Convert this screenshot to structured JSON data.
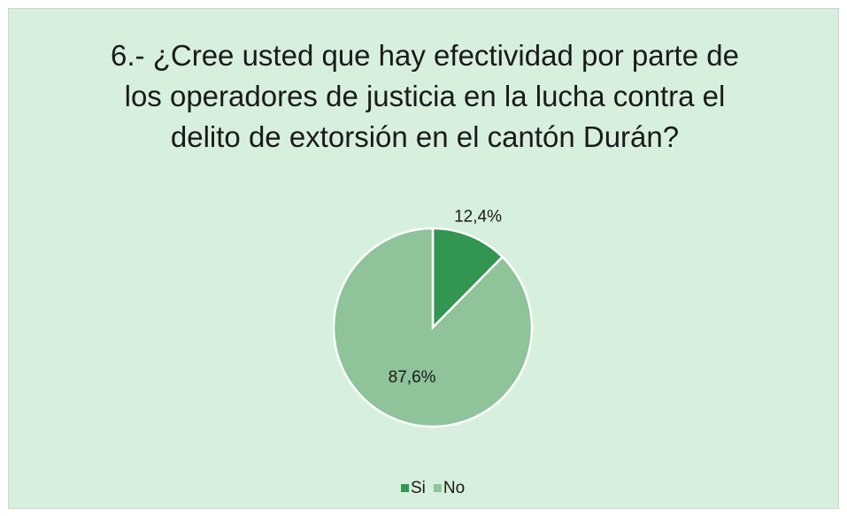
{
  "chart_data": {
    "type": "pie",
    "title": "6.- ¿Cree usted que hay efectividad por parte de los operadores de justicia en la lucha contra el delito de extorsión en el cantón Durán?",
    "categories": [
      "Si",
      "No"
    ],
    "values": [
      12.4,
      87.6
    ],
    "value_labels": [
      "12,4%",
      "87,6%"
    ],
    "colors": [
      "#339552",
      "#8fc39a"
    ],
    "legend": "bottom"
  }
}
